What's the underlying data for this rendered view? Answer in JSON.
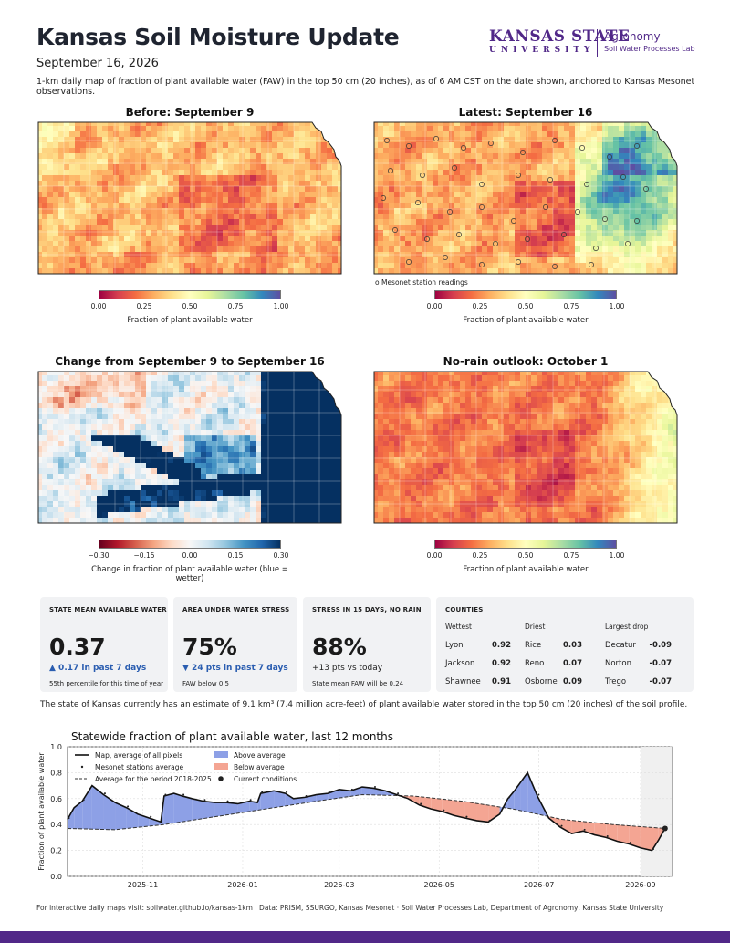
{
  "header": {
    "title": "Kansas Soil Moisture Update",
    "date": "September 16, 2026",
    "description": "1-km daily map of fraction of plant available water (FAW) in the top 50 cm (20 inches), as of 6 AM CST on the date shown, anchored to Kansas Mesonet observations."
  },
  "logo": {
    "word": "KANSAS STATE",
    "univ": "UNIVERSITY",
    "dept": "Agronomy",
    "lab": "Soil Water Processes Lab"
  },
  "maps": [
    {
      "title": "Before: September 9",
      "kind": "dry"
    },
    {
      "title": "Latest: September 16",
      "kind": "latest"
    },
    {
      "title": "Change from September 9 to September 16",
      "kind": "change"
    },
    {
      "title": "No-rain outlook: October 1",
      "kind": "outlook"
    }
  ],
  "colorbars": {
    "faw_ticks": [
      "0.00",
      "0.25",
      "0.50",
      "0.75",
      "1.00"
    ],
    "faw_label": "Fraction of plant available water",
    "change_ticks": [
      "−0.30",
      "−0.15",
      "0.00",
      "0.15",
      "0.30"
    ],
    "change_label": "Change in fraction of plant available water (blue = wetter)",
    "station_note": "o Mesonet station readings"
  },
  "colors": {
    "accent_purple": "#512888",
    "above_avg": "#8da0e6",
    "below_avg": "#f4a593",
    "change_blue": "#2a5db0"
  },
  "cards": [
    {
      "heading": "STATE MEAN AVAILABLE WATER",
      "value": "0.37",
      "change": "▲ 0.17 in past 7 days",
      "sub": "55th percentile for this time of year"
    },
    {
      "heading": "AREA UNDER WATER STRESS",
      "value": "75%",
      "change": "▼ 24 pts in past 7 days",
      "sub": "FAW below 0.5"
    },
    {
      "heading": "STRESS IN 15 DAYS, NO RAIN",
      "value": "88%",
      "change": "+13 pts vs today",
      "sub": "State mean FAW will be 0.24"
    }
  ],
  "counties": {
    "heading": "COUNTIES",
    "columns": [
      "Wettest",
      "Driest",
      "Largest drop"
    ],
    "rows": [
      [
        [
          "Lyon",
          "0.92"
        ],
        [
          "Rice",
          "0.03"
        ],
        [
          "Decatur",
          "-0.09"
        ]
      ],
      [
        [
          "Jackson",
          "0.92"
        ],
        [
          "Reno",
          "0.07"
        ],
        [
          "Norton",
          "-0.07"
        ]
      ],
      [
        [
          "Shawnee",
          "0.91"
        ],
        [
          "Osborne",
          "0.09"
        ],
        [
          "Trego",
          "-0.07"
        ]
      ]
    ]
  },
  "storage_text": "The state of Kansas currently has an estimate of 9.1 km³ (7.4 million acre-feet) of plant available water stored in the top 50 cm (20 inches) of the soil profile.",
  "chart_data": {
    "type": "line",
    "title": "Statewide fraction of plant available water, last 12 months",
    "ylabel": "Fraction of plant available water",
    "xlabel": "",
    "ylim": [
      0.0,
      1.0
    ],
    "yticks": [
      "0.0",
      "0.2",
      "0.4",
      "0.6",
      "0.8",
      "1.0"
    ],
    "x_ticks": [
      "2025-11",
      "2026-01",
      "2026-03",
      "2026-05",
      "2026-07",
      "2026-09"
    ],
    "x_range": [
      "2025-09-16",
      "2026-09-20"
    ],
    "grid": true,
    "legend_position": "top-left",
    "legend": [
      "Map, average of all pixels",
      "Mesonet stations average",
      "Average for the period 2018-2025",
      "Above average",
      "Below average",
      "Current conditions"
    ],
    "series": [
      {
        "name": "Map, average of all pixels",
        "x": [
          "2025-09-16",
          "2025-09-20",
          "2025-09-25",
          "2025-10-01",
          "2025-10-08",
          "2025-10-15",
          "2025-10-22",
          "2025-10-29",
          "2025-11-05",
          "2025-11-12",
          "2025-11-14",
          "2025-11-20",
          "2025-11-25",
          "2025-12-01",
          "2025-12-08",
          "2025-12-15",
          "2025-12-22",
          "2025-12-29",
          "2026-01-05",
          "2026-01-10",
          "2026-01-12",
          "2026-01-20",
          "2026-01-27",
          "2026-02-01",
          "2026-02-08",
          "2026-02-15",
          "2026-02-22",
          "2026-03-01",
          "2026-03-08",
          "2026-03-15",
          "2026-03-22",
          "2026-03-29",
          "2026-04-05",
          "2026-04-12",
          "2026-04-19",
          "2026-04-26",
          "2026-05-03",
          "2026-05-10",
          "2026-05-17",
          "2026-05-24",
          "2026-05-31",
          "2026-06-07",
          "2026-06-12",
          "2026-06-16",
          "2026-06-20",
          "2026-06-24",
          "2026-06-30",
          "2026-07-07",
          "2026-07-14",
          "2026-07-21",
          "2026-07-28",
          "2026-08-04",
          "2026-08-11",
          "2026-08-18",
          "2026-08-25",
          "2026-09-01",
          "2026-09-08",
          "2026-09-12",
          "2026-09-16"
        ],
        "values": [
          0.44,
          0.53,
          0.58,
          0.7,
          0.63,
          0.57,
          0.53,
          0.48,
          0.45,
          0.42,
          0.62,
          0.64,
          0.62,
          0.6,
          0.58,
          0.57,
          0.57,
          0.56,
          0.58,
          0.57,
          0.64,
          0.66,
          0.64,
          0.6,
          0.61,
          0.63,
          0.64,
          0.67,
          0.66,
          0.69,
          0.68,
          0.66,
          0.63,
          0.6,
          0.55,
          0.52,
          0.5,
          0.47,
          0.45,
          0.43,
          0.42,
          0.48,
          0.6,
          0.66,
          0.73,
          0.8,
          0.62,
          0.45,
          0.38,
          0.33,
          0.35,
          0.32,
          0.3,
          0.27,
          0.25,
          0.22,
          0.2,
          0.28,
          0.37
        ]
      },
      {
        "name": "Average for the period 2018-2025",
        "x": [
          "2025-09-16",
          "2025-10-15",
          "2025-11-14",
          "2025-12-15",
          "2026-01-15",
          "2026-02-15",
          "2026-03-15",
          "2026-04-15",
          "2026-05-15",
          "2026-06-15",
          "2026-07-15",
          "2026-08-15",
          "2026-09-16"
        ],
        "values": [
          0.37,
          0.36,
          0.4,
          0.46,
          0.52,
          0.58,
          0.63,
          0.62,
          0.58,
          0.52,
          0.44,
          0.4,
          0.37
        ]
      }
    ],
    "current": {
      "date": "2026-09-16",
      "value": 0.37
    }
  },
  "footer": "For interactive daily maps visit: soilwater.github.io/kansas-1km  ·  Data: PRISM, SSURGO, Kansas Mesonet  ·  Soil Water Processes Lab, Department of Agronomy, Kansas State University"
}
